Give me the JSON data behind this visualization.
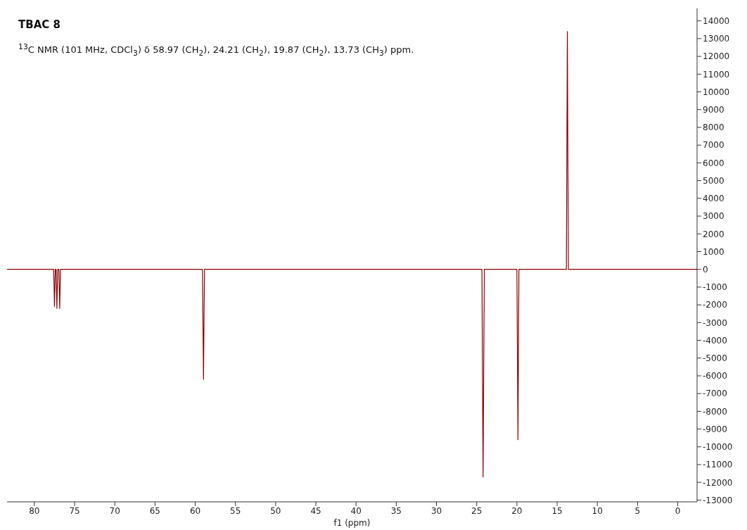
{
  "chart_data": {
    "type": "line",
    "title": "TBAC 8",
    "subtitle": "$^{13}$C NMR (101 MHz, CDCl$_{3}$) δ 58.97 (CH$_{2}$), 24.21 (CH$_{2}$), 19.87 (CH$_{2}$), 13.73 (CH$_{3}$) ppm.",
    "xlabel": "f1 (ppm)",
    "x": [
      83.4,
      78,
      77.6,
      77.5,
      77.4,
      77.3,
      77.2,
      77.1,
      76.95,
      76.85,
      76.75,
      59.1,
      58.97,
      58.85,
      24.35,
      24.21,
      24.05,
      20,
      19.87,
      19.75,
      13.85,
      13.73,
      13.6,
      -2.4
    ],
    "series": [
      {
        "color": "#8b0000",
        "values": [
          0,
          0,
          0,
          -2100,
          0,
          0,
          -2200,
          0,
          0,
          -2200,
          0,
          0,
          -6200,
          0,
          0,
          -11700,
          0,
          0,
          -9600,
          0,
          0,
          13400,
          0,
          0
        ]
      }
    ],
    "xlim": [
      83.4,
      -2.4
    ],
    "xticks": [
      80,
      75,
      70,
      65,
      60,
      55,
      50,
      45,
      40,
      35,
      30,
      25,
      20,
      15,
      10,
      5,
      0
    ],
    "ylim": [
      -13100,
      14700
    ],
    "yticks": [
      14000,
      13000,
      12000,
      11000,
      10000,
      9000,
      8000,
      7000,
      6000,
      5000,
      4000,
      3000,
      2000,
      1000,
      0,
      -1000,
      -2000,
      -3000,
      -4000,
      -5000,
      -6000,
      -7000,
      -8000,
      -9000,
      -10000,
      -11000,
      -12000,
      -13000
    ],
    "grid": false,
    "legend": false,
    "marker": "none",
    "line_style": "solid"
  }
}
